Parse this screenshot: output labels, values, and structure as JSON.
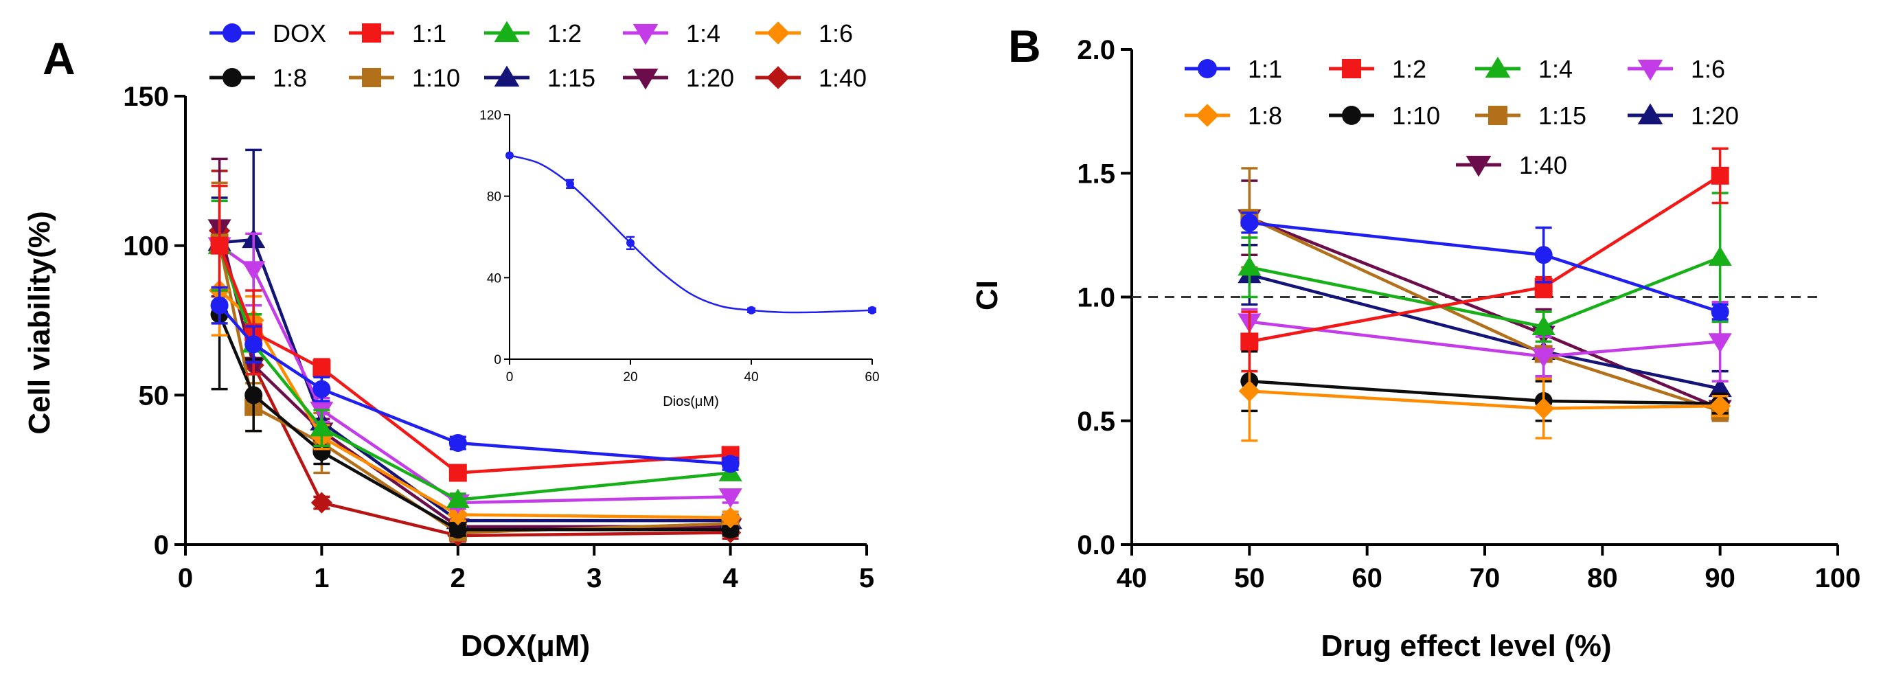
{
  "panels": [
    {
      "letter": "A"
    },
    {
      "letter": "B"
    }
  ],
  "chart_data": [
    {
      "panel": "A",
      "type": "line",
      "xlabel": "DOX(μM)",
      "ylabel": "Cell viability(%)",
      "xlim": [
        0,
        5
      ],
      "ylim": [
        0,
        150
      ],
      "xticks": [
        "0",
        "1",
        "2",
        "3",
        "4",
        "5"
      ],
      "yticks": [
        "0",
        "50",
        "100",
        "150"
      ],
      "legend_position": "top",
      "x": [
        0.25,
        0.5,
        1,
        2,
        4
      ],
      "series": [
        {
          "name": "DOX",
          "color": "#1f1ff2",
          "marker": "circle",
          "values": [
            80,
            67,
            52,
            34,
            27
          ],
          "err": [
            6,
            6,
            4,
            2,
            2
          ]
        },
        {
          "name": "1:1",
          "color": "#f21818",
          "marker": "square",
          "values": [
            100,
            71,
            59,
            24,
            30
          ],
          "err": [
            20,
            14,
            3,
            2,
            2
          ]
        },
        {
          "name": "1:2",
          "color": "#18b018",
          "marker": "tri-up",
          "values": [
            100,
            67,
            39,
            15,
            24
          ],
          "err": [
            15,
            10,
            6,
            2,
            2
          ]
        },
        {
          "name": "1:4",
          "color": "#c43ce8",
          "marker": "tri-down",
          "values": [
            100,
            92,
            45,
            14,
            16
          ],
          "err": [
            15,
            12,
            4,
            2,
            2
          ]
        },
        {
          "name": "1:6",
          "color": "#ff8c00",
          "marker": "diamond",
          "values": [
            85,
            75,
            36,
            10,
            9
          ],
          "err": [
            15,
            8,
            4,
            2,
            2
          ]
        },
        {
          "name": "1:8",
          "color": "#0d0d0d",
          "marker": "circle",
          "values": [
            77,
            50,
            31,
            5,
            5
          ],
          "err": [
            25,
            12,
            4,
            2,
            2
          ]
        },
        {
          "name": "1:10",
          "color": "#b3701a",
          "marker": "square",
          "values": [
            101,
            46,
            34,
            4,
            7
          ],
          "err": [
            20,
            8,
            10,
            2,
            2
          ]
        },
        {
          "name": "1:15",
          "color": "#141478",
          "marker": "tri-up",
          "values": [
            101,
            102,
            41,
            8,
            8
          ],
          "err": [
            15,
            30,
            6,
            2,
            2
          ]
        },
        {
          "name": "1:20",
          "color": "#6b0d4a",
          "marker": "tri-down",
          "values": [
            106,
            60,
            38,
            6,
            6
          ],
          "err": [
            23,
            10,
            4,
            2,
            2
          ]
        },
        {
          "name": "1:40",
          "color": "#b81414",
          "marker": "diamond",
          "values": [
            105,
            60,
            14,
            3,
            4
          ],
          "err": [
            20,
            10,
            2,
            2,
            2
          ]
        }
      ],
      "inset": {
        "type": "line",
        "xlabel": "Dios(μM)",
        "xlim": [
          0,
          60
        ],
        "ylim": [
          0,
          120
        ],
        "xticks": [
          "0",
          "20",
          "40",
          "60"
        ],
        "yticks": [
          "0",
          "40",
          "80",
          "120"
        ],
        "color": "#1f1ff2",
        "points_x": [
          0,
          10,
          20,
          40,
          60
        ],
        "points_y": [
          100,
          86,
          57,
          24,
          24
        ],
        "points_err": [
          0,
          2,
          3,
          1,
          1
        ],
        "curve_x": [
          0,
          5,
          10,
          15,
          20,
          25,
          30,
          35,
          40,
          45,
          50,
          55,
          60
        ],
        "curve_y": [
          100,
          96,
          86,
          72,
          57,
          43,
          32,
          26,
          24,
          23,
          23,
          23.5,
          24
        ]
      }
    },
    {
      "panel": "B",
      "type": "line",
      "xlabel": "Drug effect level (%)",
      "ylabel": "CI",
      "xlim": [
        40,
        100
      ],
      "ylim": [
        0,
        2
      ],
      "xticks": [
        "40",
        "50",
        "60",
        "70",
        "80",
        "90",
        "100"
      ],
      "yticks": [
        "0.0",
        "0.5",
        "1.0",
        "1.5",
        "2.0"
      ],
      "reference_line": 1.0,
      "legend_position": "top-center",
      "x": [
        50,
        75,
        90
      ],
      "series": [
        {
          "name": "1:1",
          "color": "#1f1ff2",
          "marker": "circle",
          "values": [
            1.3,
            1.17,
            0.94
          ],
          "err": [
            0.04,
            0.11,
            0.03
          ]
        },
        {
          "name": "1:2",
          "color": "#f21818",
          "marker": "square",
          "values": [
            0.82,
            1.04,
            1.49
          ],
          "err": [
            0.12,
            0.04,
            0.11
          ]
        },
        {
          "name": "1:4",
          "color": "#18b018",
          "marker": "tri-up",
          "values": [
            1.12,
            0.88,
            1.16
          ],
          "err": [
            0.12,
            0.06,
            0.26
          ]
        },
        {
          "name": "1:6",
          "color": "#c43ce8",
          "marker": "tri-down",
          "values": [
            0.9,
            0.76,
            0.82
          ],
          "err": [
            0.05,
            0.08,
            0.16
          ]
        },
        {
          "name": "1:8",
          "color": "#ff8c00",
          "marker": "diamond",
          "values": [
            0.62,
            0.55,
            0.56
          ],
          "err": [
            0.2,
            0.12,
            0.04
          ]
        },
        {
          "name": "1:10",
          "color": "#0d0d0d",
          "marker": "circle",
          "values": [
            0.66,
            0.58,
            0.57
          ],
          "err": [
            0.12,
            0.08,
            0.04
          ]
        },
        {
          "name": "1:15",
          "color": "#b3701a",
          "marker": "square",
          "values": [
            1.32,
            0.77,
            0.54
          ],
          "err": [
            0.2,
            0.1,
            0.04
          ]
        },
        {
          "name": "1:20",
          "color": "#141478",
          "marker": "tri-up",
          "values": [
            1.09,
            0.78,
            0.63
          ],
          "err": [
            0.12,
            0.1,
            0.07
          ]
        },
        {
          "name": "1:40",
          "color": "#6b0d4a",
          "marker": "tri-down",
          "values": [
            1.32,
            0.85,
            0.55
          ],
          "err": [
            0.15,
            0.1,
            0.05
          ]
        }
      ]
    }
  ]
}
